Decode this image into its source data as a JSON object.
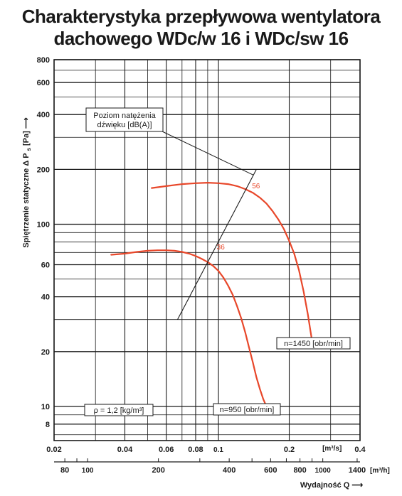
{
  "title_line1": "Charakterystyka przepływowa wentylatora",
  "title_line2": "dachowego WDc/w 16 i WDc/sw 16",
  "chart_data": {
    "type": "line",
    "x_scale": "log",
    "y_scale": "log",
    "xlim": [
      0.02,
      0.4
    ],
    "ylim": [
      6.5,
      800
    ],
    "x_ticks": [
      0.02,
      0.04,
      0.06,
      0.08,
      0.1,
      0.2,
      0.4
    ],
    "x_tick_labels": [
      "0.02",
      "0.04",
      "0.06",
      "0.08",
      "0.1",
      "0.2",
      "0.4"
    ],
    "x_unit": "[m³/s]",
    "x2_ticks": [
      80,
      100,
      200,
      400,
      600,
      800,
      1000,
      1400
    ],
    "x2_tick_labels": [
      "80",
      "100",
      "200",
      "400",
      "600",
      "800",
      "1000",
      "1400"
    ],
    "x2_unit": "[m³/h]",
    "xlabel": "Wydajność Q",
    "y_ticks": [
      8,
      10,
      20,
      40,
      60,
      100,
      200,
      400,
      600,
      800
    ],
    "y_tick_labels": [
      "8",
      "10",
      "20",
      "40",
      "60",
      "100",
      "200",
      "400",
      "600",
      "800"
    ],
    "ylabel_main": "Spiętrzenie statyczne Δ P",
    "ylabel_sub": "s",
    "ylabel_unit": "[Pa]",
    "grid": true,
    "series": [
      {
        "name": "n=1450 [obr/min]",
        "color": "#e8472a",
        "x": [
          0.052,
          0.06,
          0.07,
          0.08,
          0.09,
          0.1,
          0.11,
          0.12,
          0.13,
          0.14,
          0.15,
          0.16,
          0.17,
          0.18,
          0.19,
          0.2,
          0.21,
          0.22,
          0.23,
          0.24,
          0.25
        ],
        "y": [
          158,
          162,
          166,
          168,
          169,
          168,
          166,
          162,
          156,
          149,
          140,
          130,
          118,
          106,
          94,
          81,
          69,
          56,
          43,
          32,
          23
        ]
      },
      {
        "name": "n=950 [obr/min]",
        "color": "#e8472a",
        "x": [
          0.035,
          0.04,
          0.045,
          0.05,
          0.055,
          0.06,
          0.065,
          0.07,
          0.075,
          0.08,
          0.085,
          0.09,
          0.095,
          0.1,
          0.105,
          0.11,
          0.115,
          0.12,
          0.125,
          0.13,
          0.135,
          0.14,
          0.145,
          0.15,
          0.155,
          0.16
        ],
        "y": [
          68,
          69,
          70.5,
          71.5,
          72,
          72,
          71.5,
          70.5,
          69,
          67,
          64.5,
          62,
          59,
          55.5,
          51,
          46,
          41,
          35.5,
          30.5,
          25.5,
          21,
          17.5,
          14.5,
          12.5,
          11,
          10
        ]
      }
    ],
    "noise_line": {
      "label_line1": "Poziom natężenia",
      "label_line2": "dźwięku [dB(A)]",
      "x": [
        0.067,
        0.145
      ],
      "y": [
        30,
        200
      ],
      "markers": [
        {
          "value": "56",
          "x": 0.137,
          "y": 160
        },
        {
          "value": "36",
          "x": 0.097,
          "y": 74
        }
      ]
    },
    "annotation_density": "ρ = 1,2 [kg/m³]"
  }
}
